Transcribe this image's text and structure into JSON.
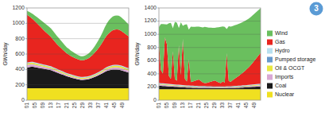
{
  "chart_data": [
    {
      "type": "area",
      "stacked": true,
      "grid": true,
      "y_label": "GWh/day",
      "ylim": [
        0,
        1200
      ],
      "yticks": [
        0,
        200,
        400,
        600,
        800,
        1000,
        1200
      ],
      "categories": [
        "01",
        null,
        null,
        null,
        "05",
        null,
        null,
        null,
        "09",
        null,
        null,
        null,
        "13",
        null,
        null,
        null,
        "17",
        null,
        null,
        null,
        "21",
        null,
        null,
        null,
        "25",
        null,
        null,
        null,
        "29",
        null,
        null,
        null,
        "33",
        null,
        null,
        null,
        "37",
        null,
        null,
        null,
        "41",
        null,
        null,
        null,
        "45",
        null,
        null,
        null,
        "49",
        null,
        null,
        null
      ],
      "series": [
        {
          "name": "Nuclear",
          "color": "#f0e020",
          "values": [
            155,
            155,
            155,
            155,
            155,
            155,
            155,
            155,
            155,
            155,
            155,
            155,
            155,
            155,
            155,
            155,
            155,
            155,
            155,
            155,
            155,
            155,
            155,
            155,
            155,
            155,
            155,
            155,
            155,
            155,
            155,
            155,
            155,
            155,
            155,
            155,
            155,
            155,
            155,
            155,
            155,
            155,
            155,
            155,
            155,
            155,
            155,
            155,
            155,
            155,
            155,
            155
          ]
        },
        {
          "name": "Coal",
          "color": "#1a1a1a",
          "values": [
            270,
            275,
            280,
            280,
            275,
            270,
            265,
            260,
            255,
            250,
            245,
            240,
            235,
            225,
            215,
            205,
            195,
            185,
            175,
            165,
            155,
            148,
            140,
            133,
            127,
            120,
            115,
            110,
            110,
            112,
            115,
            120,
            128,
            137,
            147,
            158,
            170,
            183,
            197,
            212,
            225,
            232,
            238,
            242,
            243,
            242,
            240,
            235,
            228,
            220,
            212,
            205
          ]
        },
        {
          "name": "Imports",
          "color": "#d9a8d4",
          "values": [
            35,
            34,
            33,
            32,
            31,
            30,
            29,
            28,
            27,
            26,
            25,
            24,
            23,
            22,
            21,
            20,
            19,
            18,
            17,
            16,
            15,
            15,
            14,
            14,
            13,
            13,
            13,
            12,
            12,
            12,
            12,
            12,
            13,
            13,
            14,
            15,
            16,
            17,
            18,
            20,
            22,
            24,
            26,
            28,
            29,
            30,
            30,
            29,
            28,
            27,
            26,
            25
          ]
        },
        {
          "name": "Oil & OCGT",
          "color": "#e8e840",
          "values": [
            18,
            18,
            18,
            18,
            17,
            17,
            17,
            17,
            16,
            16,
            16,
            16,
            15,
            15,
            15,
            15,
            14,
            14,
            14,
            14,
            13,
            13,
            13,
            13,
            13,
            13,
            12,
            12,
            12,
            12,
            12,
            12,
            12,
            12,
            13,
            13,
            14,
            14,
            15,
            16,
            17,
            18,
            19,
            20,
            21,
            21,
            21,
            21,
            20,
            20,
            19,
            19
          ]
        },
        {
          "name": "Pumped storage",
          "color": "#6699cc",
          "values": [
            5,
            5,
            5,
            5,
            5,
            5,
            5,
            5,
            5,
            5,
            5,
            5,
            5,
            5,
            5,
            5,
            5,
            5,
            5,
            5,
            5,
            5,
            5,
            5,
            5,
            5,
            5,
            5,
            5,
            5,
            5,
            5,
            5,
            5,
            5,
            5,
            5,
            5,
            5,
            5,
            5,
            5,
            5,
            5,
            5,
            5,
            5,
            5,
            5,
            5,
            5,
            5
          ]
        },
        {
          "name": "Hydro",
          "color": "#b8e0f0",
          "values": [
            8,
            8,
            8,
            8,
            8,
            8,
            8,
            8,
            8,
            8,
            8,
            8,
            8,
            8,
            8,
            8,
            8,
            8,
            8,
            8,
            8,
            8,
            8,
            8,
            8,
            8,
            8,
            8,
            8,
            8,
            8,
            8,
            8,
            8,
            8,
            8,
            8,
            8,
            8,
            8,
            8,
            8,
            8,
            8,
            8,
            8,
            8,
            8,
            8,
            8,
            8,
            8
          ]
        },
        {
          "name": "Gas",
          "color": "#e8251f",
          "values": [
            620,
            600,
            575,
            555,
            535,
            515,
            495,
            475,
            455,
            435,
            418,
            400,
            382,
            362,
            342,
            322,
            308,
            294,
            280,
            268,
            256,
            248,
            240,
            234,
            228,
            223,
            220,
            218,
            218,
            222,
            228,
            237,
            248,
            262,
            278,
            296,
            316,
            338,
            362,
            388,
            410,
            428,
            442,
            452,
            458,
            460,
            458,
            452,
            443,
            433,
            422,
            412
          ]
        },
        {
          "name": "Wind",
          "color": "#6abf5e",
          "values": [
            50,
            55,
            62,
            68,
            74,
            80,
            86,
            92,
            98,
            102,
            106,
            108,
            110,
            110,
            108,
            106,
            102,
            96,
            90,
            84,
            78,
            74,
            70,
            66,
            62,
            58,
            55,
            52,
            52,
            54,
            57,
            62,
            68,
            76,
            84,
            94,
            104,
            116,
            130,
            144,
            156,
            166,
            173,
            178,
            181,
            182,
            181,
            178,
            174,
            168,
            162,
            156
          ]
        }
      ]
    },
    {
      "type": "area",
      "stacked": true,
      "grid": true,
      "y_label": "GWh/day",
      "legend": "right",
      "annotations": [
        "3"
      ],
      "ylim": [
        0,
        1400
      ],
      "yticks": [
        0,
        200,
        400,
        600,
        800,
        1000,
        1200,
        1400
      ],
      "categories": [
        "01",
        null,
        null,
        null,
        "05",
        null,
        null,
        null,
        "09",
        null,
        null,
        null,
        "13",
        null,
        null,
        null,
        "17",
        null,
        null,
        null,
        "21",
        null,
        null,
        null,
        "25",
        null,
        null,
        null,
        "29",
        null,
        null,
        null,
        "33",
        null,
        null,
        null,
        "37",
        null,
        null,
        null,
        "41",
        null,
        null,
        null,
        "45",
        null,
        null,
        null,
        "49",
        null,
        null,
        null
      ],
      "series": [
        {
          "name": "Nuclear",
          "color": "#f0e020",
          "values": [
            165,
            165,
            165,
            165,
            165,
            165,
            165,
            165,
            165,
            165,
            165,
            165,
            165,
            165,
            165,
            165,
            165,
            165,
            165,
            165,
            165,
            165,
            165,
            165,
            165,
            165,
            165,
            165,
            165,
            165,
            165,
            165,
            165,
            165,
            165,
            165,
            165,
            165,
            165,
            165,
            165,
            165,
            165,
            165,
            165,
            165,
            165,
            165,
            165,
            165,
            165,
            165
          ]
        },
        {
          "name": "Coal",
          "color": "#1a1a1a",
          "values": [
            55,
            52,
            50,
            48,
            46,
            44,
            42,
            40,
            38,
            36,
            34,
            32,
            30,
            28,
            26,
            25,
            24,
            23,
            22,
            21,
            20,
            20,
            19,
            19,
            18,
            18,
            17,
            17,
            17,
            16,
            16,
            16,
            16,
            17,
            17,
            18,
            18,
            19,
            20,
            21,
            22,
            24,
            26,
            28,
            30,
            32,
            34,
            36,
            38,
            40,
            42,
            44
          ]
        },
        {
          "name": "Imports",
          "color": "#d9a8d4",
          "values": [
            18,
            17,
            17,
            16,
            16,
            15,
            15,
            14,
            14,
            13,
            13,
            13,
            12,
            12,
            11,
            11,
            11,
            10,
            10,
            10,
            10,
            9,
            9,
            9,
            9,
            9,
            8,
            8,
            8,
            8,
            8,
            8,
            8,
            8,
            9,
            9,
            9,
            10,
            10,
            10,
            11,
            11,
            12,
            12,
            13,
            13,
            14,
            14,
            15,
            15,
            16,
            16
          ]
        },
        {
          "name": "Oil & OCGT",
          "color": "#e8e840",
          "values": [
            10,
            10,
            10,
            10,
            10,
            10,
            9,
            9,
            9,
            9,
            9,
            9,
            8,
            8,
            8,
            8,
            8,
            8,
            8,
            7,
            7,
            7,
            7,
            7,
            7,
            7,
            7,
            6,
            6,
            6,
            6,
            6,
            6,
            6,
            7,
            7,
            7,
            7,
            8,
            8,
            8,
            8,
            9,
            9,
            9,
            9,
            10,
            10,
            10,
            10,
            10,
            10
          ]
        },
        {
          "name": "Pumped storage",
          "color": "#6699cc",
          "values": [
            5,
            5,
            5,
            5,
            5,
            5,
            5,
            5,
            5,
            5,
            5,
            5,
            5,
            5,
            5,
            5,
            5,
            5,
            5,
            5,
            5,
            5,
            5,
            5,
            5,
            5,
            5,
            5,
            5,
            5,
            5,
            5,
            5,
            5,
            5,
            5,
            5,
            5,
            5,
            5,
            5,
            5,
            5,
            5,
            5,
            5,
            5,
            5,
            5,
            5,
            5,
            5
          ]
        },
        {
          "name": "Hydro",
          "color": "#b8e0f0",
          "values": [
            8,
            8,
            8,
            8,
            8,
            8,
            8,
            8,
            8,
            8,
            8,
            8,
            8,
            8,
            8,
            8,
            8,
            8,
            8,
            8,
            8,
            8,
            8,
            8,
            8,
            8,
            8,
            8,
            8,
            8,
            8,
            8,
            8,
            8,
            8,
            8,
            8,
            8,
            8,
            8,
            8,
            8,
            8,
            8,
            8,
            8,
            8,
            8,
            8,
            8,
            8,
            8
          ]
        },
        {
          "name": "Gas",
          "color": "#e8251f",
          "values": [
            620,
            200,
            150,
            700,
            600,
            120,
            80,
            500,
            80,
            60,
            600,
            150,
            700,
            100,
            60,
            400,
            55,
            65,
            75,
            90,
            100,
            80,
            55,
            45,
            50,
            60,
            70,
            80,
            90,
            75,
            60,
            50,
            75,
            60,
            500,
            80,
            65,
            90,
            110,
            130,
            150,
            170,
            190,
            215,
            240,
            265,
            295,
            330,
            365,
            400,
            435,
            470
          ]
        },
        {
          "name": "Wind",
          "color": "#6abf5e",
          "values": [
            230,
            700,
            750,
            200,
            300,
            800,
            850,
            350,
            870,
            880,
            260,
            800,
            200,
            820,
            870,
            450,
            840,
            830,
            820,
            810,
            800,
            815,
            835,
            855,
            845,
            830,
            820,
            810,
            800,
            820,
            840,
            855,
            835,
            845,
            370,
            830,
            840,
            820,
            810,
            800,
            790,
            780,
            770,
            760,
            750,
            740,
            730,
            720,
            710,
            700,
            690,
            680
          ]
        }
      ]
    }
  ]
}
